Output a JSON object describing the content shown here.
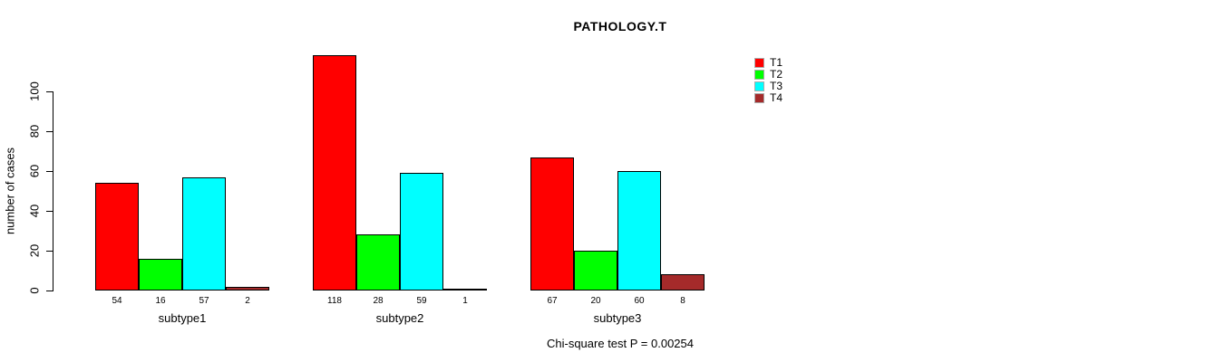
{
  "chart_data": {
    "type": "bar",
    "title": "PATHOLOGY.T",
    "xlabel": "",
    "ylabel": "number of cases",
    "ylim": [
      0,
      100
    ],
    "yticks": [
      0,
      20,
      40,
      60,
      80,
      100
    ],
    "grid": false,
    "legend_position": "top-right",
    "categories": [
      "subtype1",
      "subtype2",
      "subtype3"
    ],
    "series": [
      {
        "name": "T1",
        "color": "#FF0000",
        "values": [
          54,
          118,
          67
        ]
      },
      {
        "name": "T2",
        "color": "#00FF00",
        "values": [
          16,
          28,
          20
        ]
      },
      {
        "name": "T3",
        "color": "#00FFFF",
        "values": [
          57,
          59,
          60
        ]
      },
      {
        "name": "T4",
        "color": "#A52A2A",
        "values": [
          2,
          1,
          8
        ]
      }
    ],
    "bar_value_labels": {
      "subtype1": [
        54,
        16,
        57,
        2
      ],
      "subtype2": [
        118,
        28,
        59,
        1
      ],
      "subtype3": [
        67,
        20,
        60,
        8
      ]
    },
    "annotation": "Chi-square test P = 0.00254"
  },
  "legend": {
    "items": [
      {
        "label": "T1",
        "color": "#FF0000"
      },
      {
        "label": "T2",
        "color": "#00FF00"
      },
      {
        "label": "T3",
        "color": "#00FFFF"
      },
      {
        "label": "T4",
        "color": "#A52A2A"
      }
    ]
  }
}
